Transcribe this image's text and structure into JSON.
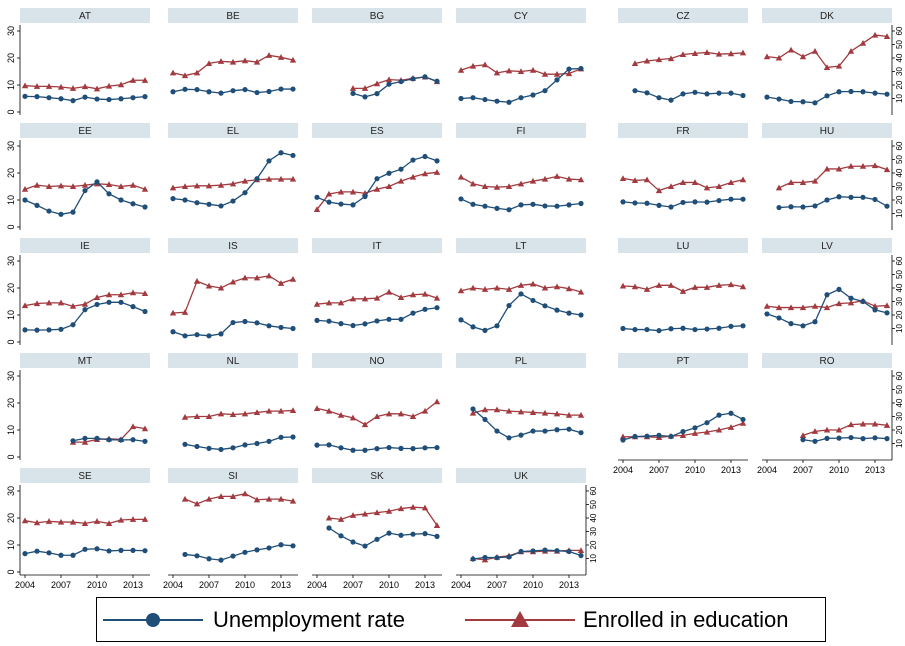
{
  "chart_data": {
    "type": "line",
    "x": [
      2004,
      2005,
      2006,
      2007,
      2008,
      2009,
      2010,
      2011,
      2012,
      2013,
      2014
    ],
    "x_ticks": [
      "2004",
      "2007",
      "2010",
      "2013"
    ],
    "left_axis": {
      "ylim": [
        0,
        30
      ],
      "ticks": [
        "0",
        "10",
        "20",
        "30"
      ]
    },
    "right_axis": {
      "ylim": [
        0,
        60
      ],
      "ticks": [
        "10",
        "20",
        "30",
        "40",
        "50",
        "60"
      ]
    },
    "series": [
      {
        "name": "Unemployment rate",
        "axis": "left",
        "color": "#1f4e79",
        "marker": "circle"
      },
      {
        "name": "Enrolled in education",
        "axis": "right",
        "color": "#a23a3f",
        "marker": "triangle"
      }
    ],
    "panels": [
      {
        "title": "AT",
        "unemployment": [
          5.8,
          5.7,
          5.3,
          4.9,
          4.2,
          5.5,
          4.8,
          4.6,
          4.9,
          5.3,
          5.7
        ],
        "education": [
          19.5,
          19,
          19,
          18.5,
          17.5,
          18.8,
          17.2,
          19.2,
          20.2,
          23.5,
          23.5
        ]
      },
      {
        "title": "BE",
        "unemployment": [
          7.5,
          8.4,
          8.3,
          7.5,
          7,
          7.9,
          8.3,
          7.2,
          7.6,
          8.5,
          8.5
        ],
        "education": [
          29,
          27,
          29,
          36,
          37.5,
          37,
          38,
          37,
          42,
          40.5,
          38.5
        ]
      },
      {
        "title": "BG",
        "unemployment": [
          null,
          null,
          null,
          6.9,
          5.6,
          6.8,
          10.3,
          11.3,
          12.3,
          13,
          11.4
        ],
        "education": [
          null,
          null,
          null,
          17.5,
          17.5,
          21,
          24,
          23.5,
          25,
          26,
          22.5
        ]
      },
      {
        "title": "CY",
        "unemployment": [
          5,
          5.3,
          4.6,
          4,
          3.6,
          5.3,
          6.3,
          7.9,
          11.9,
          15.9,
          16.1
        ],
        "education": [
          31,
          34,
          35,
          29,
          30.5,
          30,
          31,
          28,
          28,
          28.5,
          32
        ]
      },
      {
        "title": "CZ",
        "unemployment": [
          null,
          7.9,
          7.1,
          5.3,
          4.4,
          6.7,
          7.3,
          6.7,
          7,
          7,
          6.1
        ],
        "education": [
          null,
          36,
          37.8,
          38.8,
          39.6,
          42.6,
          43.4,
          44.1,
          42.9,
          43.2,
          43.8
        ]
      },
      {
        "title": "DK",
        "unemployment": [
          5.5,
          4.8,
          3.9,
          3.8,
          3.4,
          6,
          7.5,
          7.6,
          7.5,
          7,
          6.6
        ],
        "education": [
          41,
          40,
          46,
          41,
          45,
          33,
          34,
          45,
          51,
          57,
          56
        ]
      },
      {
        "title": "EE",
        "unemployment": [
          10,
          8,
          5.9,
          4.7,
          5.5,
          13.5,
          16.7,
          12.3,
          10,
          8.6,
          7.4
        ],
        "education": [
          28,
          31,
          30,
          30.5,
          30,
          31,
          32,
          31.5,
          30,
          31,
          28
        ]
      },
      {
        "title": "EL",
        "unemployment": [
          10.5,
          10,
          9,
          8.4,
          7.8,
          9.6,
          12.7,
          17.9,
          24.5,
          27.5,
          26.5
        ],
        "education": [
          29,
          30,
          30.5,
          30.5,
          31,
          32,
          34,
          35,
          35.5,
          35.5,
          35.5
        ]
      },
      {
        "title": "ES",
        "unemployment": [
          11,
          9.2,
          8.5,
          8.2,
          11.3,
          17.9,
          19.9,
          21.4,
          24.8,
          26.1,
          24.5
        ],
        "education": [
          13,
          24.5,
          26,
          26,
          25,
          28,
          30,
          34,
          37,
          39.5,
          40.5
        ]
      },
      {
        "title": "FI",
        "unemployment": [
          10.4,
          8.4,
          7.7,
          6.9,
          6.4,
          8.2,
          8.4,
          7.8,
          7.7,
          8.2,
          8.7
        ],
        "education": [
          37,
          32,
          30,
          29.5,
          30,
          32,
          34,
          35.5,
          37.5,
          35.5,
          35
        ]
      },
      {
        "title": "FR",
        "unemployment": [
          9.3,
          8.9,
          8.8,
          8,
          7.4,
          9.1,
          9.3,
          9.2,
          9.8,
          10.3,
          10.3
        ],
        "education": [
          36,
          34.5,
          35,
          27,
          30,
          33,
          33,
          29,
          30,
          33,
          35
        ]
      },
      {
        "title": "HU",
        "unemployment": [
          null,
          7.2,
          7.5,
          7.4,
          7.8,
          10,
          11.2,
          11,
          11,
          10.2,
          7.7
        ],
        "education": [
          null,
          29,
          33,
          33,
          34,
          43,
          43,
          45,
          45,
          45.5,
          42.5
        ]
      },
      {
        "title": "IE",
        "unemployment": [
          4.5,
          4.4,
          4.5,
          4.7,
          6.4,
          12,
          13.9,
          14.7,
          14.7,
          13.1,
          11.3
        ],
        "education": [
          27,
          28.5,
          29,
          29,
          26.5,
          28,
          33,
          35,
          35,
          36.5,
          36
        ]
      },
      {
        "title": "IS",
        "unemployment": [
          3.8,
          2.3,
          2.7,
          2.3,
          3,
          7.2,
          7.6,
          7.1,
          6,
          5.4,
          5
        ],
        "education": [
          21.5,
          22,
          45,
          41.5,
          40,
          44.5,
          47.5,
          47.5,
          49,
          43.5,
          46.5
        ]
      },
      {
        "title": "IT",
        "unemployment": [
          8,
          7.7,
          6.8,
          6.1,
          6.7,
          7.8,
          8.4,
          8.4,
          10.7,
          12.1,
          12.7
        ],
        "education": [
          28,
          29,
          29,
          32,
          32,
          32.5,
          37,
          33,
          35,
          35.5,
          32.5
        ]
      },
      {
        "title": "LT",
        "unemployment": [
          8.2,
          5.6,
          4.3,
          6,
          13.5,
          17.8,
          15.4,
          13.4,
          11.8,
          10.7,
          10
        ],
        "education": [
          38,
          40,
          39,
          40,
          39,
          42,
          43,
          40,
          41,
          39.5,
          37
        ]
      },
      {
        "title": "LU",
        "unemployment": [
          5,
          4.6,
          4.6,
          4.2,
          4.9,
          5.1,
          4.6,
          4.8,
          5.1,
          5.8,
          6
        ],
        "education": [
          41.5,
          41,
          39,
          42,
          42,
          37.5,
          40.5,
          40.5,
          42,
          42.5,
          41
        ]
      },
      {
        "title": "LV",
        "unemployment": [
          10.4,
          8.9,
          6.8,
          6,
          7.5,
          17.5,
          19.5,
          16.2,
          15,
          11.9,
          10.8
        ],
        "education": [
          26.5,
          25.5,
          25.5,
          25.5,
          26.5,
          25.5,
          28.5,
          29,
          30.5,
          26.5,
          27
        ]
      },
      {
        "title": "MT",
        "unemployment": [
          null,
          null,
          null,
          null,
          6,
          6.9,
          6.9,
          6.4,
          6.3,
          6.4,
          5.8
        ],
        "education": [
          null,
          null,
          null,
          null,
          11,
          11,
          13,
          13.5,
          13,
          22.5,
          21
        ]
      },
      {
        "title": "NL",
        "unemployment": [
          null,
          4.7,
          3.9,
          3.2,
          2.8,
          3.4,
          4.5,
          5,
          5.8,
          7.3,
          7.4
        ],
        "education": [
          null,
          29.5,
          30,
          30,
          32,
          31.5,
          32,
          33,
          34,
          34,
          34.5
        ]
      },
      {
        "title": "NO",
        "unemployment": [
          4.4,
          4.5,
          3.4,
          2.5,
          2.5,
          3.1,
          3.5,
          3.2,
          3.1,
          3.4,
          3.5
        ],
        "education": [
          36,
          34,
          31,
          29,
          24,
          30,
          32,
          32,
          30,
          34,
          41
        ]
      },
      {
        "title": "PL",
        "unemployment": [
          null,
          17.8,
          13.9,
          9.6,
          7.1,
          8.1,
          9.6,
          9.6,
          10.1,
          10.3,
          9
        ],
        "education": [
          null,
          32.5,
          35,
          35,
          34,
          33.5,
          33,
          32.5,
          32,
          31,
          31
        ]
      },
      {
        "title": "PT",
        "unemployment": [
          6.3,
          7.6,
          7.7,
          8,
          7.6,
          9.4,
          10.8,
          12.7,
          15.5,
          16.2,
          13.9
        ],
        "education": [
          15,
          15,
          15,
          14.5,
          15.5,
          16,
          17.5,
          18.5,
          20,
          22,
          25
        ]
      },
      {
        "title": "RO",
        "unemployment": [
          null,
          null,
          null,
          6.4,
          5.8,
          6.9,
          7,
          7.2,
          6.8,
          7.1,
          6.8
        ],
        "education": [
          null,
          null,
          null,
          16,
          19,
          20,
          20,
          24,
          24.5,
          24.5,
          23.5
        ]
      },
      {
        "title": "SE",
        "unemployment": [
          6.8,
          7.7,
          7.1,
          6.2,
          6.2,
          8.4,
          8.6,
          7.8,
          8,
          8,
          7.9
        ],
        "education": [
          38,
          36.5,
          37.5,
          37,
          37,
          36,
          37.5,
          36,
          38.5,
          39,
          39
        ]
      },
      {
        "title": "SI",
        "unemployment": [
          null,
          6.5,
          6,
          4.9,
          4.4,
          5.9,
          7.3,
          8.2,
          8.9,
          10.1,
          9.7
        ],
        "education": [
          null,
          54,
          50.5,
          54,
          56,
          56,
          58,
          53.5,
          54,
          54,
          52.5
        ]
      },
      {
        "title": "SK",
        "unemployment": [
          null,
          16.3,
          13.4,
          11.1,
          9.6,
          12.1,
          14.4,
          13.6,
          14,
          14.2,
          13.2
        ],
        "education": [
          null,
          40,
          39,
          42,
          43,
          44,
          45,
          47,
          48,
          47.5,
          34.5
        ]
      },
      {
        "title": "UK",
        "unemployment": [
          null,
          4.8,
          5.4,
          5.3,
          5.6,
          7.6,
          7.8,
          8.1,
          7.9,
          7.6,
          6.1
        ],
        "education": [
          null,
          10,
          9,
          11,
          12,
          15,
          15,
          15.5,
          15.5,
          16,
          16
        ]
      }
    ]
  },
  "legend": {
    "unemployment_label": "Unemployment rate",
    "education_label": "Enrolled in education"
  }
}
